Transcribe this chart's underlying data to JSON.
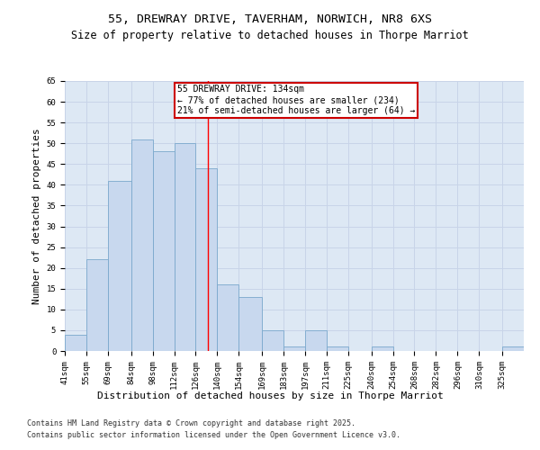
{
  "title1": "55, DREWRAY DRIVE, TAVERHAM, NORWICH, NR8 6XS",
  "title2": "Size of property relative to detached houses in Thorpe Marriot",
  "xlabel": "Distribution of detached houses by size in Thorpe Marriot",
  "ylabel": "Number of detached properties",
  "categories": [
    "41sqm",
    "55sqm",
    "69sqm",
    "84sqm",
    "98sqm",
    "112sqm",
    "126sqm",
    "140sqm",
    "154sqm",
    "169sqm",
    "183sqm",
    "197sqm",
    "211sqm",
    "225sqm",
    "240sqm",
    "254sqm",
    "268sqm",
    "282sqm",
    "296sqm",
    "310sqm",
    "325sqm"
  ],
  "values": [
    4,
    22,
    41,
    51,
    48,
    50,
    44,
    16,
    13,
    5,
    1,
    5,
    1,
    0,
    1,
    0,
    0,
    0,
    0,
    0,
    1
  ],
  "bar_color": "#c8d8ee",
  "bar_edge_color": "#7aa8cc",
  "bar_edge_width": 0.6,
  "red_line_x": 134,
  "bin_edges": [
    41,
    55,
    69,
    84,
    98,
    112,
    126,
    140,
    154,
    169,
    183,
    197,
    211,
    225,
    240,
    254,
    268,
    282,
    296,
    310,
    325,
    339
  ],
  "annotation_title": "55 DREWRAY DRIVE: 134sqm",
  "annotation_line1": "← 77% of detached houses are smaller (234)",
  "annotation_line2": "21% of semi-detached houses are larger (64) →",
  "annotation_box_color": "#ffffff",
  "annotation_box_edge_color": "#cc0000",
  "grid_color": "#c8d4e8",
  "bg_color": "#dde8f4",
  "ylim": [
    0,
    65
  ],
  "yticks": [
    0,
    5,
    10,
    15,
    20,
    25,
    30,
    35,
    40,
    45,
    50,
    55,
    60,
    65
  ],
  "footer1": "Contains HM Land Registry data © Crown copyright and database right 2025.",
  "footer2": "Contains public sector information licensed under the Open Government Licence v3.0.",
  "title_fontsize": 9.5,
  "subtitle_fontsize": 8.5,
  "tick_fontsize": 6.5,
  "label_fontsize": 8,
  "annot_fontsize": 7,
  "footer_fontsize": 6
}
